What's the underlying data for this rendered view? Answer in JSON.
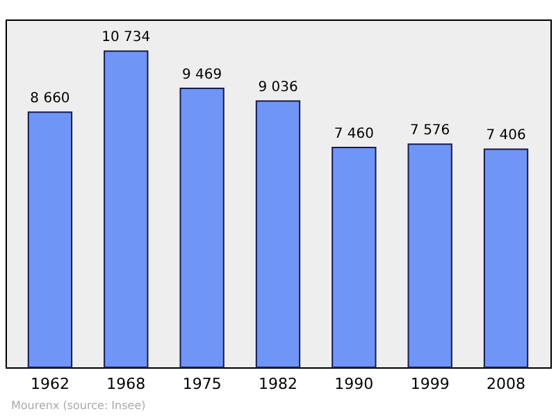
{
  "chart_data": {
    "type": "bar",
    "categories": [
      "1962",
      "1968",
      "1975",
      "1982",
      "1990",
      "1999",
      "2008"
    ],
    "values": [
      8660,
      10734,
      9469,
      9036,
      7460,
      7576,
      7406
    ],
    "value_labels": [
      "8 660",
      "10 734",
      "9 469",
      "9 036",
      "7 460",
      "7 576",
      "7 406"
    ],
    "color": "#6f96f7",
    "grid": false,
    "annotations": [
      "Mourenx   (source: Insee)"
    ]
  }
}
